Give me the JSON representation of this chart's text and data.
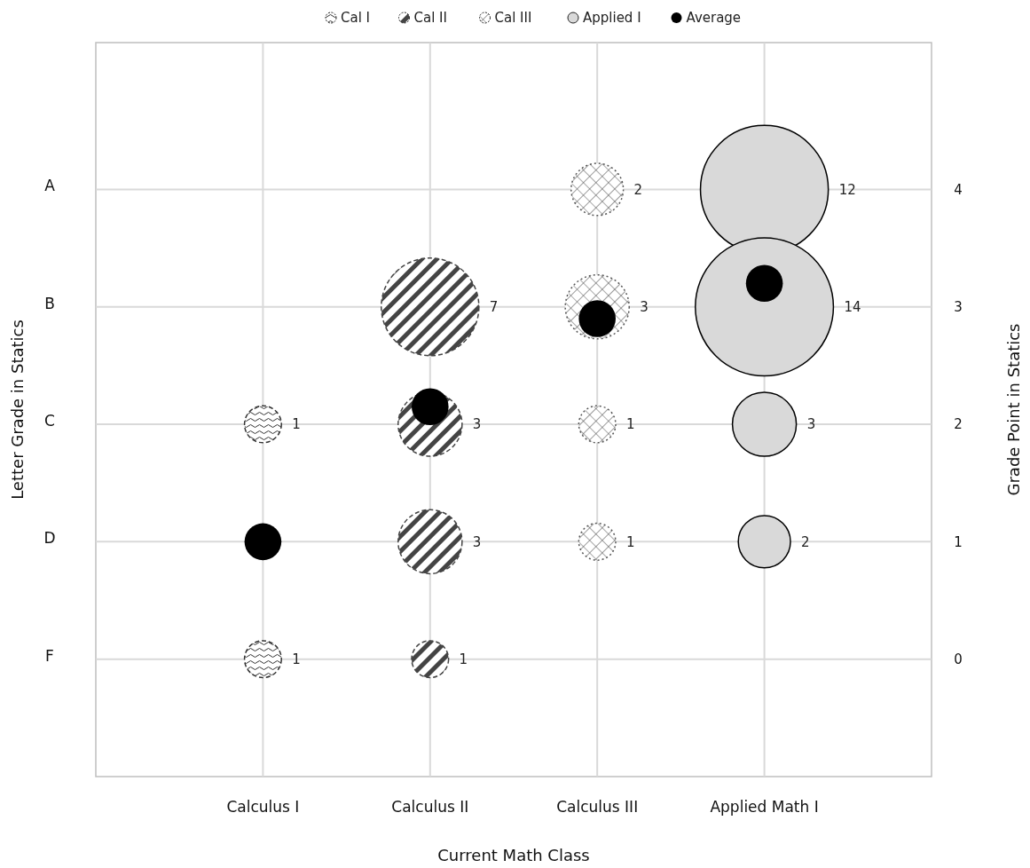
{
  "chart_data": {
    "type": "bubble",
    "xlabel": "Current Math Class",
    "ylabel": "Letter Grade in Statics",
    "y2label": "Grade Point in Statics",
    "categories": [
      "Calculus I",
      "Calculus II",
      "Calculus III",
      "Applied Math I"
    ],
    "ylim": [
      -1,
      5.25
    ],
    "yticks": [
      0,
      1,
      2,
      3,
      4
    ],
    "annotations": [
      "A",
      "B",
      "C",
      "D",
      "F"
    ],
    "grid": true,
    "legend": "top",
    "series": [
      {
        "name": "Cal I",
        "color": "#333333",
        "line_style": "dashed",
        "x": [
          "Calculus I",
          "Calculus I"
        ],
        "values": [
          2,
          0
        ],
        "sizes": [
          1,
          1
        ],
        "value_labels": [
          "1",
          "1"
        ]
      },
      {
        "name": "Cal II",
        "color": "#444444",
        "line_style": "dashed",
        "x": [
          "Calculus II",
          "Calculus II",
          "Calculus II",
          "Calculus II"
        ],
        "values": [
          3,
          2,
          1,
          0
        ],
        "sizes": [
          7,
          3,
          3,
          1
        ],
        "value_labels": [
          "7",
          "3",
          "3",
          "1"
        ]
      },
      {
        "name": "Cal III",
        "color": "#555555",
        "line_style": "dotted",
        "x": [
          "Calculus III",
          "Calculus III",
          "Calculus III",
          "Calculus III"
        ],
        "values": [
          4,
          3,
          2,
          1
        ],
        "sizes": [
          2,
          3,
          1,
          1
        ],
        "value_labels": [
          "2",
          "3",
          "1",
          "1"
        ]
      },
      {
        "name": "Applied I",
        "color": "#d9d9d9",
        "line_style": "solid",
        "x": [
          "Applied Math I",
          "Applied Math I",
          "Applied Math I",
          "Applied Math I"
        ],
        "values": [
          4,
          3,
          2,
          1
        ],
        "sizes": [
          12,
          14,
          3,
          2
        ],
        "value_labels": [
          "12",
          "14",
          "3",
          "2"
        ]
      },
      {
        "name": "Average",
        "color": "#000000",
        "line_style": "solid",
        "x": [
          "Calculus I",
          "Calculus II",
          "Calculus III",
          "Applied Math I"
        ],
        "values": [
          1.0,
          2.15,
          2.9,
          3.2
        ]
      }
    ]
  }
}
